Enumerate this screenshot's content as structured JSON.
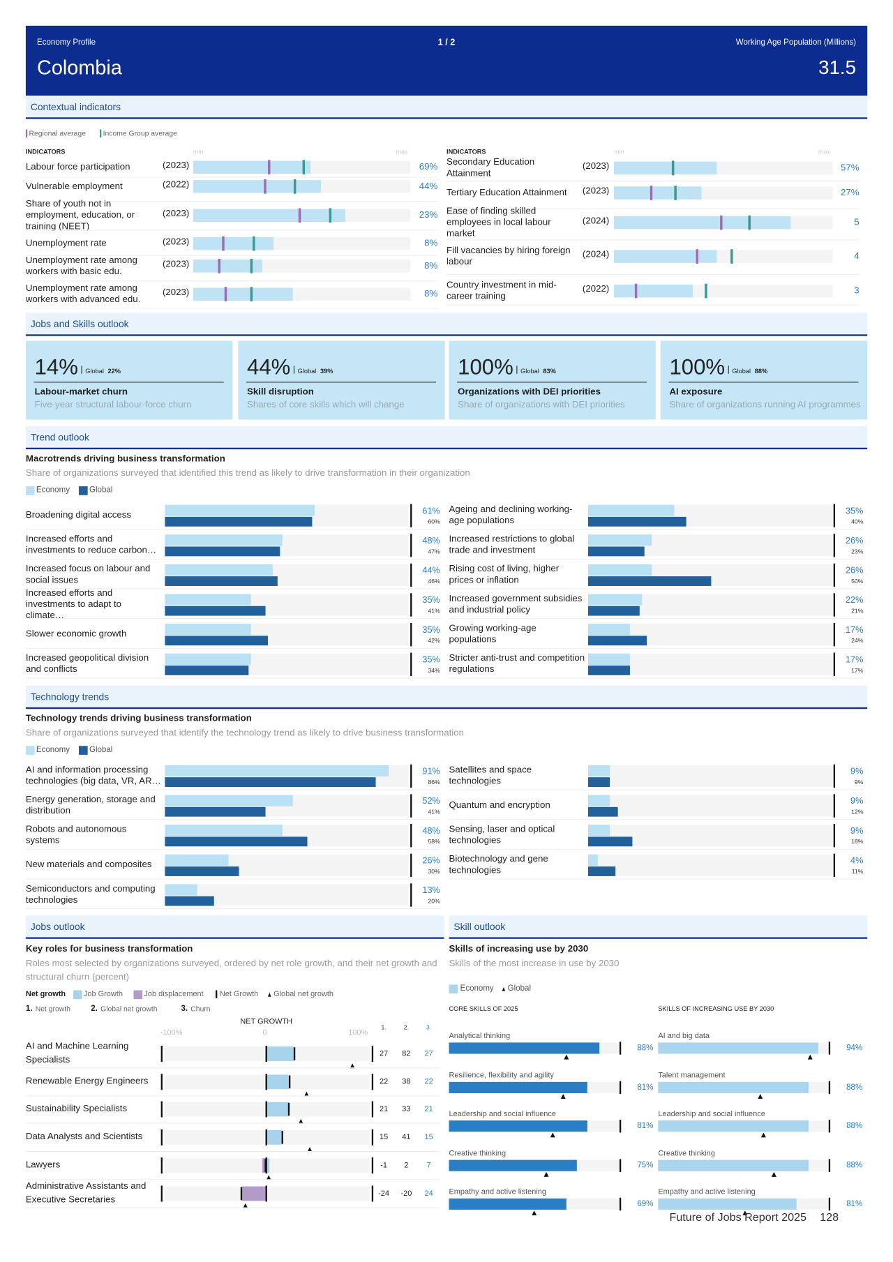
{
  "header": {
    "label": "Economy Profile",
    "page": "1 / 2",
    "country": "Colombia",
    "metric_label": "Working Age Population (Millions)",
    "metric_value": "31.5"
  },
  "contextual": {
    "section": "Contextual indicators",
    "legend": [
      "Regional average",
      "Income Group average"
    ],
    "column_header": "INDICATORS",
    "min_label": "min",
    "max_label": "max",
    "left": [
      {
        "label": "Labour force participation",
        "year": "(2023)",
        "value": "69%",
        "bar": 54,
        "regional": 35,
        "income": 51
      },
      {
        "label": "Vulnerable employment",
        "year": "(2022)",
        "value": "44%",
        "bar": 59,
        "regional": 33,
        "income": 47
      },
      {
        "label": "Share of youth not in employment, education, or training (NEET)",
        "year": "(2023)",
        "value": "23%",
        "bar": 70,
        "regional": 49,
        "income": 63
      },
      {
        "label": "Unemployment rate",
        "year": "(2023)",
        "value": "8%",
        "bar": 37,
        "regional": 14,
        "income": 28
      },
      {
        "label": "Unemployment rate among workers with basic edu.",
        "year": "(2023)",
        "value": "8%",
        "bar": 32,
        "regional": 12,
        "income": 27
      },
      {
        "label": "Unemployment rate among workers with advanced edu.",
        "year": "(2023)",
        "value": "8%",
        "bar": 46,
        "regional": 15,
        "income": 27
      }
    ],
    "right": [
      {
        "label": "Secondary Education Attainment",
        "year": "(2023)",
        "value": "57%",
        "bar": 47,
        "regional": 27,
        "income": 27
      },
      {
        "label": "Tertiary Education Attainment",
        "year": "(2023)",
        "value": "27%",
        "bar": 40,
        "regional": 17,
        "income": 28
      },
      {
        "label": "Ease of finding skilled employees in local labour market",
        "year": "(2024)",
        "value": "5",
        "bar": 81,
        "regional": 49,
        "income": 62
      },
      {
        "label": "Fill vacancies by hiring foreign labour",
        "year": "(2024)",
        "value": "4",
        "bar": 47,
        "regional": 38,
        "income": 54
      },
      {
        "label": "Country investment in mid-career training",
        "year": "(2022)",
        "value": "3",
        "bar": 36,
        "regional": 10,
        "income": 42
      }
    ]
  },
  "outlook": {
    "section": "Jobs and Skills outlook",
    "cards": [
      {
        "value": "14%",
        "global_label": "Global",
        "global_value": "22%",
        "title": "Labour-market churn",
        "subtitle": "Five-year structural labour-force churn"
      },
      {
        "value": "44%",
        "global_label": "Global",
        "global_value": "39%",
        "title": "Skill disruption",
        "subtitle": "Shares of core skills which will change"
      },
      {
        "value": "100%",
        "global_label": "Global",
        "global_value": "83%",
        "title": "Organizations with DEI priorities",
        "subtitle": "Share of organizations with DEI priorities"
      },
      {
        "value": "100%",
        "global_label": "Global",
        "global_value": "88%",
        "title": "AI exposure",
        "subtitle": "Share of organizations running AI programmes"
      }
    ]
  },
  "macrotrends": {
    "section": "Trend outlook",
    "title": "Macrotrends driving business transformation",
    "subtitle": "Share of organizations surveyed that identified this trend as likely to drive transformation in their organization",
    "legend": [
      "Economy",
      "Global"
    ],
    "colors": [
      "#b9e1f3",
      "#22609c"
    ],
    "xlim": [
      0,
      100
    ],
    "left_count": 6,
    "items": [
      {
        "label": "Broadening digital access",
        "economy": 61,
        "global": 60,
        "economy_label": "61%",
        "global_label": "60%"
      },
      {
        "label": "Increased efforts and investments to reduce carbon…",
        "economy": 48,
        "global": 47,
        "economy_label": "48%",
        "global_label": "47%"
      },
      {
        "label": "Increased focus on labour and social issues",
        "economy": 44,
        "global": 46,
        "economy_label": "44%",
        "global_label": "46%"
      },
      {
        "label": "Increased efforts and investments to adapt to climate…",
        "economy": 35,
        "global": 41,
        "economy_label": "35%",
        "global_label": "41%"
      },
      {
        "label": "Slower economic growth",
        "economy": 35,
        "global": 42,
        "economy_label": "35%",
        "global_label": "42%"
      },
      {
        "label": "Increased geopolitical division and conflicts",
        "economy": 35,
        "global": 34,
        "economy_label": "35%",
        "global_label": "34%"
      },
      {
        "label": "Ageing and declining working-age populations",
        "economy": 35,
        "global": 40,
        "economy_label": "35%",
        "global_label": "40%"
      },
      {
        "label": "Increased restrictions to global trade and investment",
        "economy": 26,
        "global": 23,
        "economy_label": "26%",
        "global_label": "23%"
      },
      {
        "label": "Rising cost of living, higher prices or inflation",
        "economy": 26,
        "global": 50,
        "economy_label": "26%",
        "global_label": "50%"
      },
      {
        "label": "Increased government subsidies and industrial policy",
        "economy": 22,
        "global": 21,
        "economy_label": "22%",
        "global_label": "21%"
      },
      {
        "label": "Growing working-age populations",
        "economy": 17,
        "global": 24,
        "economy_label": "17%",
        "global_label": "24%"
      },
      {
        "label": "Stricter anti-trust and competition regulations",
        "economy": 17,
        "global": 17,
        "economy_label": "17%",
        "global_label": "17%"
      }
    ]
  },
  "technology": {
    "section": "Technology trends",
    "title": "Technology trends driving business transformation",
    "subtitle": "Share of organizations surveyed that identify the technology trend as likely to drive business transformation",
    "legend": [
      "Economy",
      "Global"
    ],
    "colors": [
      "#b9e1f3",
      "#22609c"
    ],
    "xlim": [
      0,
      100
    ],
    "left_count": 5,
    "items": [
      {
        "label": "AI and information processing technologies (big data, VR, AR…",
        "economy": 91,
        "global": 86,
        "economy_label": "91%",
        "global_label": "86%"
      },
      {
        "label": "Energy generation, storage and distribution",
        "economy": 52,
        "global": 41,
        "economy_label": "52%",
        "global_label": "41%"
      },
      {
        "label": "Robots and autonomous systems",
        "economy": 48,
        "global": 58,
        "economy_label": "48%",
        "global_label": "58%"
      },
      {
        "label": "New materials and composites",
        "economy": 26,
        "global": 30,
        "economy_label": "26%",
        "global_label": "30%"
      },
      {
        "label": "Semiconductors and computing technologies",
        "economy": 13,
        "global": 20,
        "economy_label": "13%",
        "global_label": "20%"
      },
      {
        "label": "Satellites and space technologies",
        "economy": 9,
        "global": 9,
        "economy_label": "9%",
        "global_label": "9%"
      },
      {
        "label": "Quantum and encryption",
        "economy": 9,
        "global": 12,
        "economy_label": "9%",
        "global_label": "12%"
      },
      {
        "label": "Sensing, laser and optical technologies",
        "economy": 9,
        "global": 18,
        "economy_label": "9%",
        "global_label": "18%"
      },
      {
        "label": "Biotechnology and gene technologies",
        "economy": 4,
        "global": 11,
        "economy_label": "4%",
        "global_label": "11%"
      }
    ]
  },
  "jobs": {
    "section": "Jobs outlook",
    "title": "Key roles for business transformation",
    "subtitle": "Roles most selected by organizations surveyed, ordered by net role growth, and their net growth and structural churn (percent)",
    "legend": {
      "heading": "Net growth",
      "items": [
        "Job Growth",
        "Job displacement",
        "Net Growth",
        "Global net growth"
      ]
    },
    "column_key": [
      {
        "number": "1.",
        "label": "Net growth"
      },
      {
        "number": "2.",
        "label": "Global net growth"
      },
      {
        "number": "3.",
        "label": "Churn"
      }
    ],
    "axis_title": "NET GROWTH",
    "xlim": [
      -100,
      100
    ],
    "xticks": [
      {
        "value": -100,
        "label": "-100%"
      },
      0,
      {
        "value": 100,
        "label": "100%"
      }
    ],
    "rows": [
      {
        "label": "AI and Machine Learning Specialists",
        "job_growth": 27,
        "job_displacement": 0,
        "net_growth": 27,
        "global_net_growth": 82,
        "churn": 27
      },
      {
        "label": "Renewable Energy Engineers",
        "job_growth": 22,
        "job_displacement": 0,
        "net_growth": 22,
        "global_net_growth": 38,
        "churn": 22
      },
      {
        "label": "Sustainability Specialists",
        "job_growth": 21,
        "job_displacement": 0,
        "net_growth": 21,
        "global_net_growth": 33,
        "churn": 21
      },
      {
        "label": "Data Analysts and Scientists",
        "job_growth": 15,
        "job_displacement": 0,
        "net_growth": 15,
        "global_net_growth": 41,
        "churn": 15
      },
      {
        "label": "Lawyers",
        "job_growth": 3,
        "job_displacement": -4,
        "net_growth": -1,
        "global_net_growth": 2,
        "churn": 7
      },
      {
        "label": "Administrative Assistants and Executive Secretaries",
        "job_growth": 0,
        "job_displacement": -24,
        "net_growth": -24,
        "global_net_growth": -20,
        "churn": 24
      }
    ]
  },
  "skills": {
    "section": "Skill outlook",
    "title": "Skills of increasing use by 2030",
    "subtitle": "Skills of the most increase in use by 2030",
    "legend": [
      "Economy",
      "Global"
    ],
    "xlim": [
      0,
      100
    ],
    "panels": [
      {
        "heading": "CORE SKILLS OF 2025",
        "color": "#2a7fc4",
        "items": [
          {
            "label": "Analytical thinking",
            "economy": 88,
            "global": 69,
            "economy_label": "88%"
          },
          {
            "label": "Resilience, flexibility and agility",
            "economy": 81,
            "global": 67,
            "economy_label": "81%"
          },
          {
            "label": "Leadership and social influence",
            "economy": 81,
            "global": 61,
            "economy_label": "81%"
          },
          {
            "label": "Creative thinking",
            "economy": 75,
            "global": 57,
            "economy_label": "75%"
          },
          {
            "label": "Empathy and active listening",
            "economy": 69,
            "global": 50,
            "economy_label": "69%"
          }
        ]
      },
      {
        "heading": "SKILLS OF INCREASING USE BY 2030",
        "color": "#a9d5ef",
        "items": [
          {
            "label": "AI and big data",
            "economy": 94,
            "global": 89,
            "economy_label": "94%"
          },
          {
            "label": "Talent management",
            "economy": 88,
            "global": 60,
            "economy_label": "88%"
          },
          {
            "label": "Leadership and social influence",
            "economy": 88,
            "global": 62,
            "economy_label": "88%"
          },
          {
            "label": "Creative thinking",
            "economy": 88,
            "global": 68,
            "economy_label": "88%"
          },
          {
            "label": "Empathy and active listening",
            "economy": 81,
            "global": 51,
            "economy_label": "81%"
          }
        ]
      }
    ]
  },
  "footer": {
    "report": "Future of Jobs Report 2025",
    "page": "128"
  }
}
